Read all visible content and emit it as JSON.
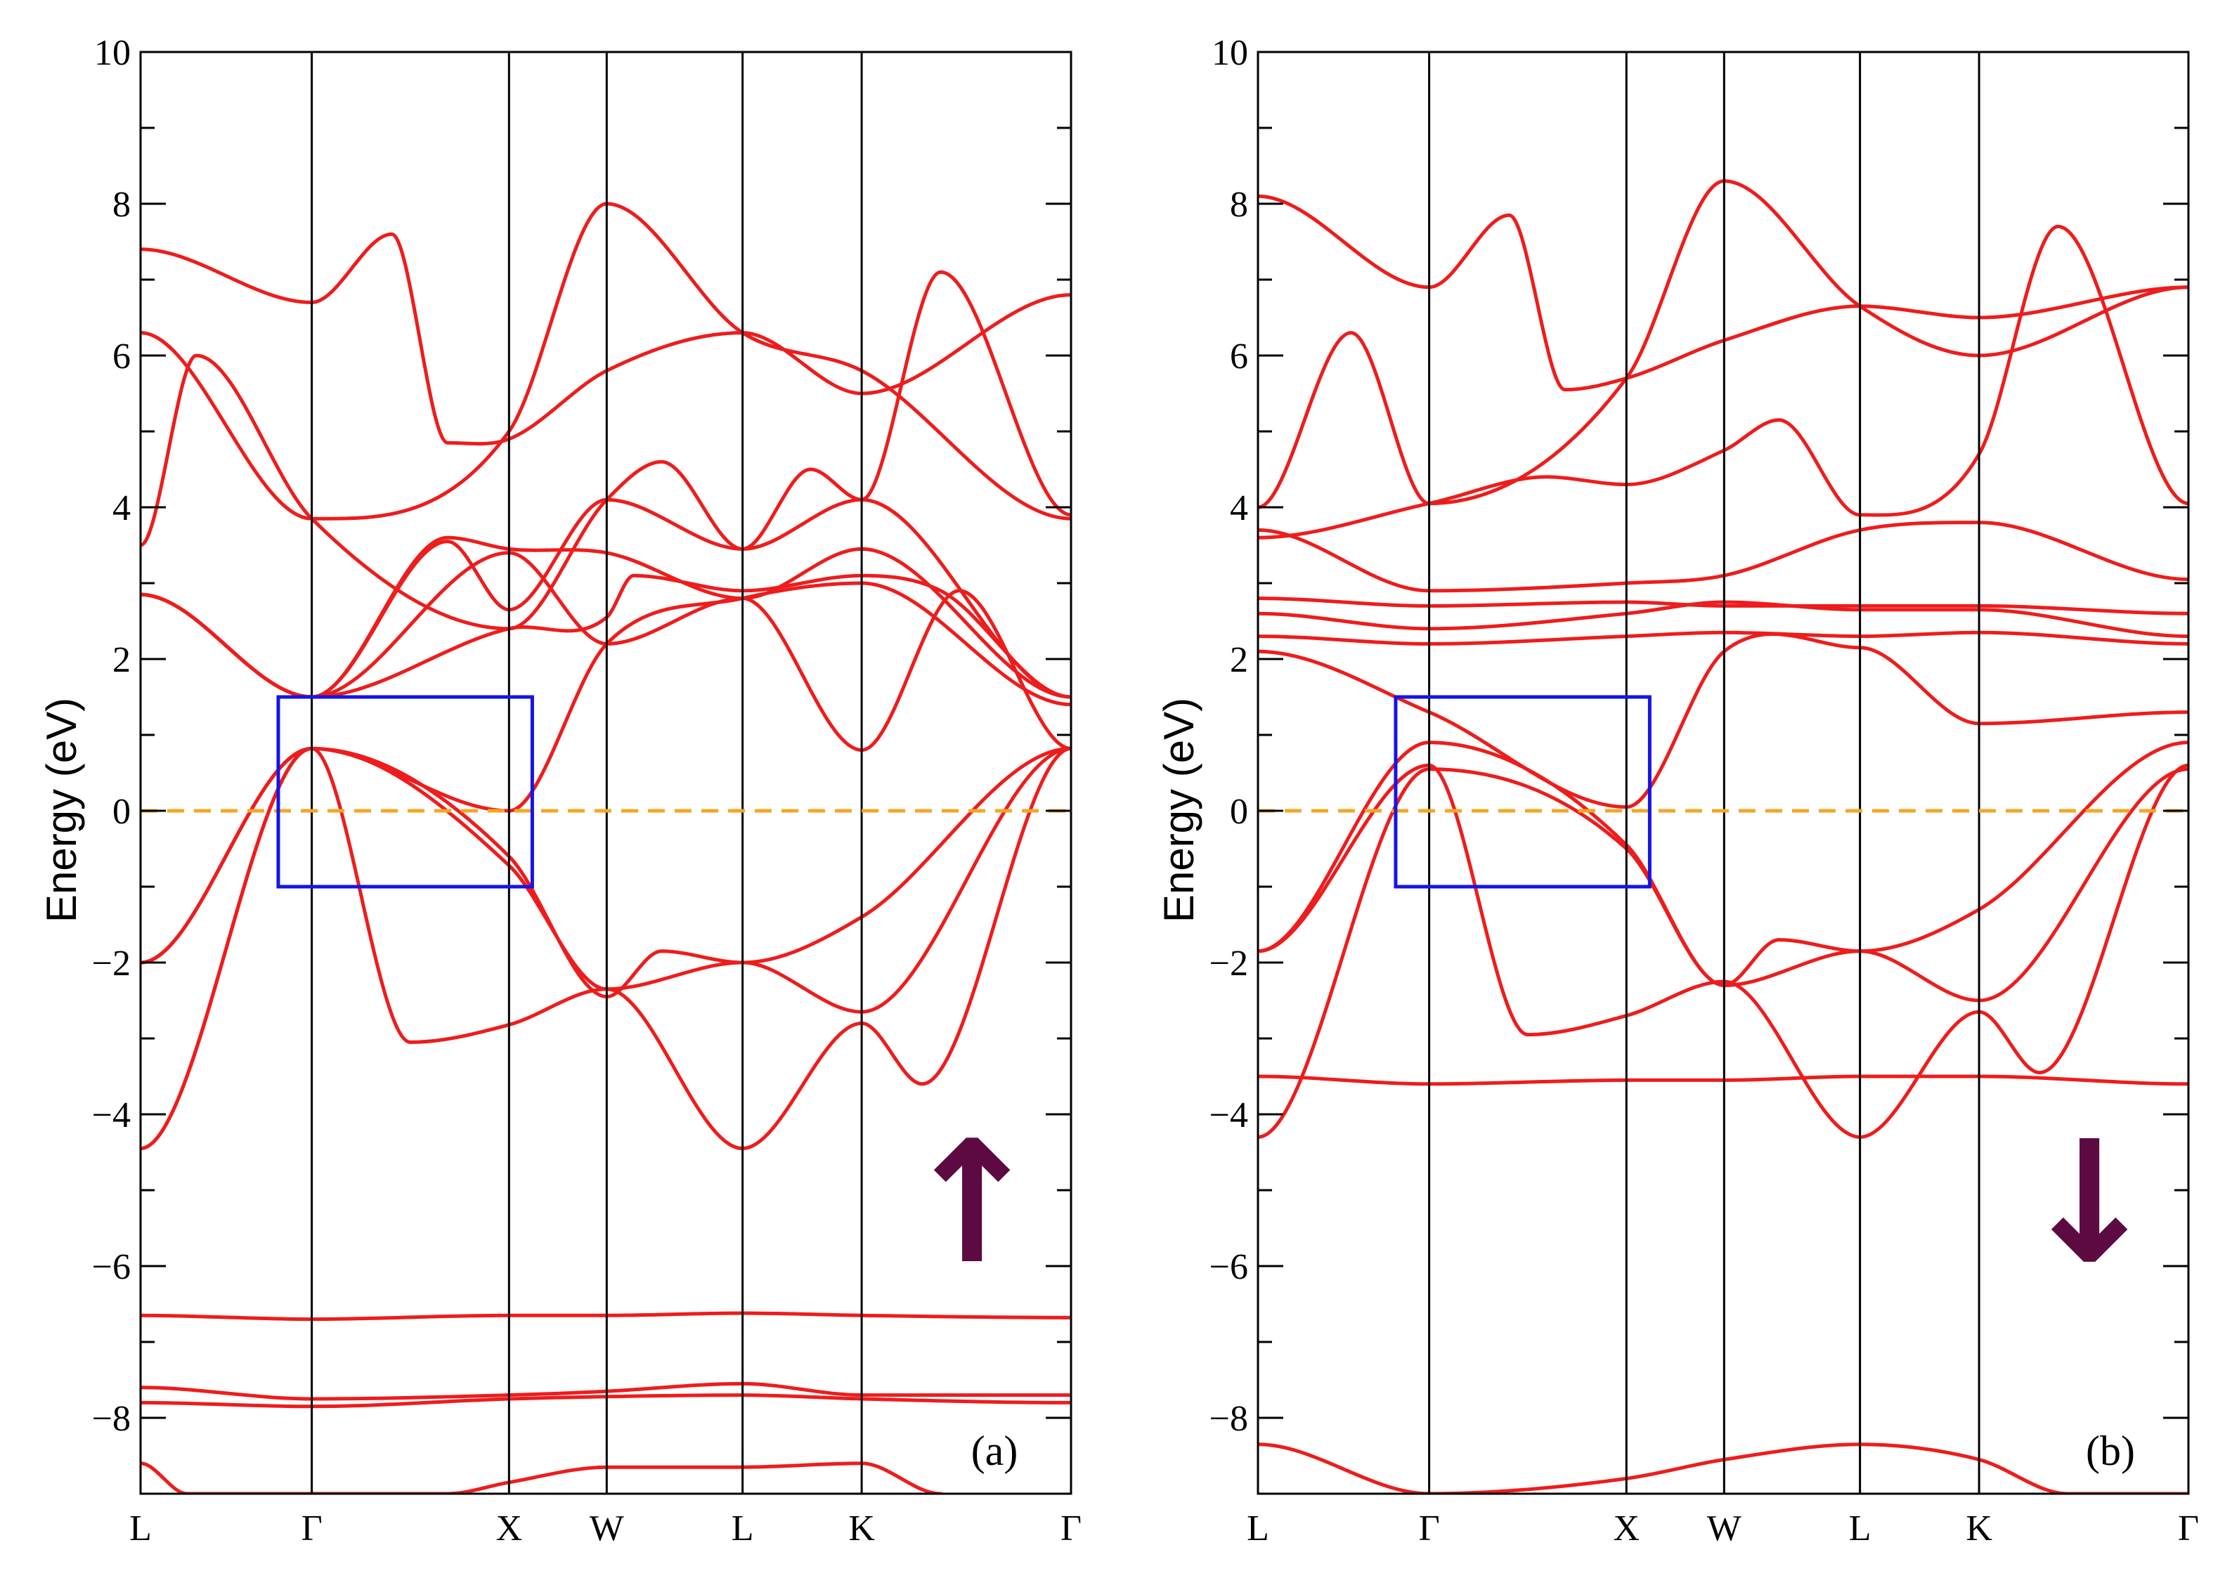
{
  "chart_data": [
    {
      "type": "line",
      "title": "",
      "panel_label": "(a)",
      "spin": "up",
      "spin_glyph": "↑",
      "ylabel": "Energy (eV)",
      "xlabel": "",
      "ylim": [
        -9,
        10
      ],
      "yticks": [
        -8,
        -6,
        -4,
        -2,
        0,
        2,
        4,
        6,
        8,
        10
      ],
      "ytick_labels": [
        "−8",
        "−6",
        "−4",
        "−2",
        "0",
        "2",
        "4",
        "6",
        "8",
        "10"
      ],
      "kpoints": [
        {
          "label": "L",
          "pos": 0.0
        },
        {
          "label": "Γ",
          "pos": 0.184
        },
        {
          "label": "X",
          "pos": 0.396
        },
        {
          "label": "W",
          "pos": 0.501
        },
        {
          "label": "L",
          "pos": 0.647
        },
        {
          "label": "K",
          "pos": 0.775
        },
        {
          "label": "Γ",
          "pos": 1.0
        }
      ],
      "fermi_level": 0,
      "highlight_box": {
        "x": [
          0.148,
          0.421
        ],
        "y": [
          -1.0,
          1.5
        ]
      },
      "series": [
        {
          "name": "band-1",
          "x": [
            0,
            0.184,
            0.396,
            0.501,
            0.647,
            0.775,
            1.0
          ],
          "y": [
            -4.45,
            0.82,
            -0.72,
            -2.35,
            -2.0,
            -2.65,
            0.82
          ]
        },
        {
          "name": "band-2",
          "x": [
            0,
            0.184,
            0.29,
            0.396,
            0.501,
            0.647,
            0.775,
            0.84,
            1.0
          ],
          "y": [
            -2.0,
            0.82,
            -3.05,
            -2.82,
            -2.35,
            -4.45,
            -2.8,
            -3.6,
            0.82
          ]
        },
        {
          "name": "band-3",
          "x": [
            0,
            0.184,
            0.396,
            0.501,
            0.56,
            0.647,
            0.775,
            1.0
          ],
          "y": [
            -2.0,
            0.82,
            -0.6,
            -2.45,
            -1.85,
            -2.0,
            -1.4,
            0.82
          ]
        },
        {
          "name": "band-4",
          "x": [
            0,
            0.184,
            0.33,
            0.396,
            0.501,
            0.647,
            0.775,
            1.0
          ],
          "y": [
            2.85,
            1.5,
            3.6,
            3.45,
            3.4,
            2.8,
            3.45,
            1.5
          ]
        },
        {
          "name": "band-5",
          "x": [
            0,
            0.184,
            0.33,
            0.396,
            0.501,
            0.647,
            0.775,
            1.0
          ],
          "y": [
            2.85,
            1.5,
            3.55,
            2.65,
            4.1,
            3.45,
            4.1,
            1.5
          ]
        },
        {
          "name": "band-6",
          "x": [
            0,
            0.184,
            0.396,
            0.501,
            0.53,
            0.647,
            0.775,
            0.86,
            1.0
          ],
          "y": [
            2.85,
            1.5,
            2.4,
            2.55,
            3.1,
            2.9,
            3.1,
            2.9,
            1.5
          ]
        },
        {
          "name": "band-7",
          "x": [
            0,
            0.184,
            0.396,
            0.501,
            0.647,
            0.775,
            1.0
          ],
          "y": [
            -4.45,
            0.82,
            0.0,
            2.2,
            2.8,
            3.0,
            1.4
          ]
        },
        {
          "name": "band-8",
          "x": [
            0,
            0.184,
            0.396,
            0.501,
            0.647,
            0.775,
            0.88,
            1.0
          ],
          "y": [
            2.85,
            1.5,
            3.4,
            2.2,
            2.8,
            0.8,
            2.9,
            0.82
          ]
        },
        {
          "name": "band-9",
          "x": [
            0,
            0.184,
            0.396,
            0.501,
            0.647,
            0.775,
            1.0
          ],
          "y": [
            6.3,
            3.85,
            5.0,
            8.0,
            6.3,
            5.8,
            3.85
          ]
        },
        {
          "name": "band-10",
          "x": [
            0,
            0.06,
            0.184,
            0.396,
            0.501,
            0.56,
            0.647,
            0.72,
            0.775,
            0.86,
            1.0
          ],
          "y": [
            3.5,
            6.0,
            3.85,
            2.4,
            4.1,
            4.6,
            3.45,
            4.5,
            4.1,
            7.1,
            3.9
          ]
        },
        {
          "name": "band-11",
          "x": [
            0,
            0.184,
            0.27,
            0.33,
            0.396,
            0.501,
            0.647,
            0.775,
            1.0
          ],
          "y": [
            7.4,
            6.7,
            7.6,
            4.85,
            4.9,
            5.8,
            6.3,
            5.5,
            6.8
          ]
        },
        {
          "name": "band-12",
          "x": [
            0,
            0.184,
            0.396,
            0.501,
            0.647,
            0.775,
            1.0
          ],
          "y": [
            -6.65,
            -6.7,
            -6.65,
            -6.65,
            -6.62,
            -6.65,
            -6.68
          ]
        },
        {
          "name": "band-13",
          "x": [
            0,
            0.184,
            0.396,
            0.501,
            0.647,
            0.775,
            1.0
          ],
          "y": [
            -7.6,
            -7.75,
            -7.7,
            -7.65,
            -7.55,
            -7.7,
            -7.7
          ]
        },
        {
          "name": "band-14",
          "x": [
            0,
            0.184,
            0.396,
            0.501,
            0.647,
            0.775,
            1.0
          ],
          "y": [
            -7.8,
            -7.85,
            -7.75,
            -7.72,
            -7.7,
            -7.75,
            -7.8
          ]
        },
        {
          "name": "band-15",
          "x": [
            0,
            0.05,
            0.33,
            0.396,
            0.501,
            0.647,
            0.775,
            0.86
          ],
          "y": [
            -8.6,
            -9.0,
            -9.0,
            -8.85,
            -8.65,
            -8.65,
            -8.6,
            -9.0
          ]
        }
      ]
    },
    {
      "type": "line",
      "title": "",
      "panel_label": "(b)",
      "spin": "down",
      "spin_glyph": "↓",
      "ylabel": "Energy (eV)",
      "xlabel": "",
      "ylim": [
        -9,
        10
      ],
      "yticks": [
        -8,
        -6,
        -4,
        -2,
        0,
        2,
        4,
        6,
        8,
        10
      ],
      "ytick_labels": [
        "−8",
        "−6",
        "−4",
        "−2",
        "0",
        "2",
        "4",
        "6",
        "8",
        "10"
      ],
      "kpoints": [
        {
          "label": "L",
          "pos": 0.0
        },
        {
          "label": "Γ",
          "pos": 0.184
        },
        {
          "label": "X",
          "pos": 0.396
        },
        {
          "label": "W",
          "pos": 0.501
        },
        {
          "label": "L",
          "pos": 0.647
        },
        {
          "label": "K",
          "pos": 0.775
        },
        {
          "label": "Γ",
          "pos": 1.0
        }
      ],
      "fermi_level": 0,
      "highlight_box": {
        "x": [
          0.148,
          0.421
        ],
        "y": [
          -1.0,
          1.5
        ]
      },
      "series": [
        {
          "name": "band-1",
          "x": [
            0,
            0.184,
            0.396,
            0.501,
            0.647,
            0.775,
            1.0
          ],
          "y": [
            -4.3,
            0.55,
            -0.5,
            -2.3,
            -1.85,
            -2.5,
            0.55
          ]
        },
        {
          "name": "band-2",
          "x": [
            0,
            0.184,
            0.29,
            0.396,
            0.501,
            0.647,
            0.775,
            0.84,
            1.0
          ],
          "y": [
            -1.85,
            0.6,
            -2.95,
            -2.7,
            -2.25,
            -4.3,
            -2.65,
            -3.45,
            0.6
          ]
        },
        {
          "name": "band-3",
          "x": [
            0,
            0.184,
            0.396,
            0.501,
            0.56,
            0.647,
            0.775,
            1.0
          ],
          "y": [
            -1.85,
            0.9,
            -0.45,
            -2.3,
            -1.7,
            -1.85,
            -1.3,
            0.9
          ]
        },
        {
          "name": "band-4",
          "x": [
            0,
            0.184,
            0.396,
            0.501,
            0.647,
            0.775,
            1.0
          ],
          "y": [
            -3.5,
            -3.6,
            -3.55,
            -3.55,
            -3.5,
            -3.5,
            -3.6
          ]
        },
        {
          "name": "band-5",
          "x": [
            0,
            0.184,
            0.396,
            0.501,
            0.647,
            0.775,
            1.0
          ],
          "y": [
            3.7,
            2.9,
            3.0,
            3.1,
            3.7,
            3.8,
            3.05
          ]
        },
        {
          "name": "band-6",
          "x": [
            0,
            0.184,
            0.396,
            0.501,
            0.647,
            0.775,
            1.0
          ],
          "y": [
            2.8,
            2.7,
            2.75,
            2.7,
            2.7,
            2.7,
            2.6
          ]
        },
        {
          "name": "band-7",
          "x": [
            0,
            0.184,
            0.396,
            0.501,
            0.647,
            0.775,
            1.0
          ],
          "y": [
            2.6,
            2.4,
            2.6,
            2.75,
            2.65,
            2.65,
            2.3
          ]
        },
        {
          "name": "band-8",
          "x": [
            0,
            0.184,
            0.396,
            0.501,
            0.647,
            0.775,
            1.0
          ],
          "y": [
            2.3,
            2.2,
            2.3,
            2.35,
            2.3,
            2.35,
            2.2
          ]
        },
        {
          "name": "band-9",
          "x": [
            0,
            0.184,
            0.396,
            0.501,
            0.647,
            0.775,
            1.0
          ],
          "y": [
            2.1,
            1.3,
            0.05,
            2.1,
            2.15,
            1.15,
            1.3
          ]
        },
        {
          "name": "band-10",
          "x": [
            0,
            0.184,
            0.31,
            0.396,
            0.501,
            0.56,
            0.647,
            0.775,
            0.86,
            1.0
          ],
          "y": [
            3.6,
            4.05,
            4.4,
            4.3,
            4.75,
            5.15,
            3.9,
            4.7,
            7.7,
            4.05
          ]
        },
        {
          "name": "band-11",
          "x": [
            0,
            0.1,
            0.184,
            0.396,
            0.501,
            0.647,
            0.775,
            1.0
          ],
          "y": [
            4.0,
            6.3,
            4.05,
            5.7,
            8.3,
            6.65,
            6.0,
            6.9
          ]
        },
        {
          "name": "band-12",
          "x": [
            0,
            0.184,
            0.27,
            0.33,
            0.396,
            0.501,
            0.647,
            0.775,
            1.0
          ],
          "y": [
            8.1,
            6.9,
            7.85,
            5.55,
            5.7,
            6.2,
            6.65,
            6.5,
            6.9
          ]
        },
        {
          "name": "band-13",
          "x": [
            0,
            0.184,
            0.396,
            0.501,
            0.647,
            0.775,
            0.87,
            1.0
          ],
          "y": [
            -8.35,
            -9.0,
            -8.8,
            -8.55,
            -8.35,
            -8.55,
            -9.0,
            -9.0
          ]
        }
      ]
    }
  ]
}
